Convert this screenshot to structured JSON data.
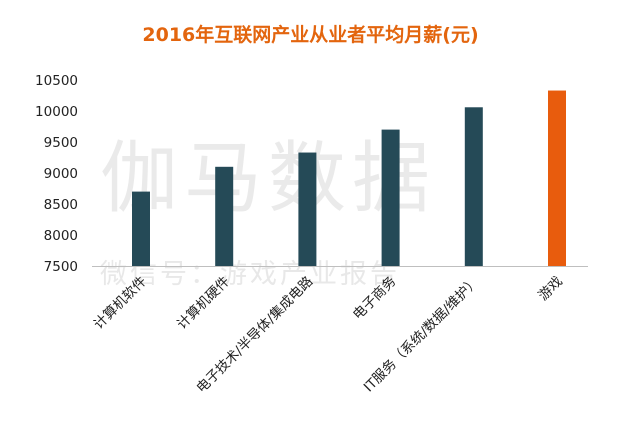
{
  "watermark": {
    "main": "伽马数据",
    "sub": "微信号：游戏产业报告"
  },
  "colors": {
    "title": "#e3650e",
    "bar": "#254a57",
    "highlight": "#e85c0d",
    "axis": "#bfbfbf"
  },
  "chart_data": {
    "type": "bar",
    "title": "2016年互联网产业从业者平均月薪(元)",
    "xlabel": "",
    "ylabel": "",
    "categories": [
      "计算机软件",
      "计算机硬件",
      "电子技术/半导体/集成电路",
      "电子商务",
      "IT服务（系统/数据/维护）",
      "游戏"
    ],
    "values": [
      8700,
      9100,
      9330,
      9700,
      10060,
      10330
    ],
    "highlight_index": 5,
    "ylim": [
      7500,
      10500
    ],
    "yticks": [
      7500,
      8000,
      8500,
      9000,
      9500,
      10000,
      10500
    ],
    "grid": false,
    "legend": "none"
  }
}
